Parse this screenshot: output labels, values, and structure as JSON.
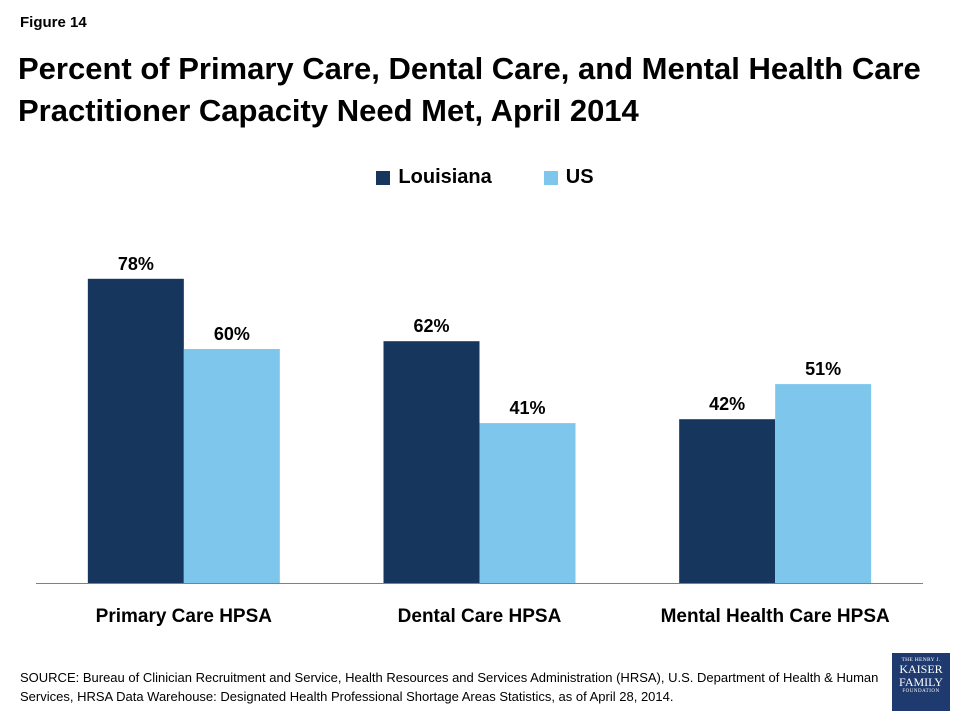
{
  "header": {
    "figure_label": "Figure 14",
    "title": "Percent of Primary Care, Dental Care, and Mental Health Care Practitioner Capacity Need Met, April 2014"
  },
  "chart_data": {
    "type": "bar",
    "categories": [
      "Primary Care HPSA",
      "Dental Care HPSA",
      "Mental Health Care HPSA"
    ],
    "series": [
      {
        "name": "Louisiana",
        "values": [
          78,
          62,
          42
        ],
        "labels": [
          "78%",
          "62%",
          "42%"
        ],
        "color": "#17365d"
      },
      {
        "name": "US",
        "values": [
          60,
          41,
          51
        ],
        "labels": [
          "60%",
          "41%",
          "51%"
        ],
        "color": "#7fc6ec"
      }
    ],
    "ylim": [
      0,
      100
    ],
    "grid": false,
    "legend_position": "top-center"
  },
  "footer": {
    "source": "SOURCE: Bureau of Clinician Recruitment and Service, Health Resources and Services Administration (HRSA), U.S. Department of Health & Human Services, HRSA Data Warehouse: Designated Health Professional Shortage Areas Statistics, as of April 28, 2014."
  },
  "logo": {
    "line1": "THE HENRY J.",
    "line2": "KAISER",
    "line3": "FAMILY",
    "line4": "FOUNDATION"
  }
}
